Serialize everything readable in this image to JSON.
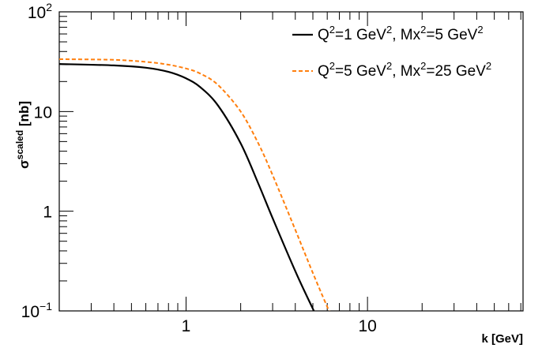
{
  "chart_data": {
    "type": "line",
    "title": "",
    "xlabel": "k [GeV]",
    "ylabel": {
      "base": "σ",
      "superscript": "scaled",
      "unit": " [nb]"
    },
    "x_scale": "log",
    "y_scale": "log",
    "xlim": [
      0.2,
      72
    ],
    "ylim": [
      0.1,
      100
    ],
    "x_ticks": [
      {
        "value": 1,
        "label": "1"
      },
      {
        "value": 10,
        "label": "10"
      }
    ],
    "y_ticks": [
      {
        "value": 0.1,
        "base": "10",
        "exp": "−1"
      },
      {
        "value": 1,
        "base": "1",
        "exp": ""
      },
      {
        "value": 10,
        "base": "10",
        "exp": ""
      },
      {
        "value": 100,
        "base": "10",
        "exp": "2"
      }
    ],
    "grid": false,
    "legend_position": "top-right",
    "series": [
      {
        "name": "Q²=1 GeV², Mx²=5 GeV²",
        "legend": {
          "q_base": "Q",
          "q_exp": "2",
          "q_val": "=1 GeV",
          "q_unit_exp": "2",
          "m_base": ", Mx",
          "m_exp": "2",
          "m_val": "=5 GeV",
          "m_unit_exp": "2"
        },
        "color": "#000000",
        "dash": "solid",
        "x": [
          0.2,
          0.4,
          0.6,
          0.8,
          1.0,
          1.2,
          1.5,
          2.0,
          2.5,
          3.0,
          4.0,
          5.0,
          5.1
        ],
        "y": [
          30,
          29,
          27.5,
          25,
          21.5,
          17.5,
          11.5,
          4.8,
          1.9,
          0.85,
          0.25,
          0.105,
          0.098
        ]
      },
      {
        "name": "Q²=5 GeV², Mx²=25 GeV²",
        "legend": {
          "q_base": "Q",
          "q_exp": "2",
          "q_val": "=5 GeV",
          "q_unit_exp": "2",
          "m_base": ", Mx",
          "m_exp": "2",
          "m_val": "=25 GeV",
          "m_unit_exp": "2"
        },
        "color": "#ff7f0e",
        "dash": "dashed",
        "x": [
          0.2,
          0.4,
          0.6,
          0.8,
          1.0,
          1.2,
          1.5,
          2.0,
          2.5,
          3.0,
          4.0,
          5.0,
          6.0,
          6.2
        ],
        "y": [
          33.5,
          33,
          31.5,
          29.5,
          27,
          24,
          18.5,
          10,
          4.8,
          2.3,
          0.65,
          0.24,
          0.11,
          0.098
        ]
      }
    ]
  }
}
